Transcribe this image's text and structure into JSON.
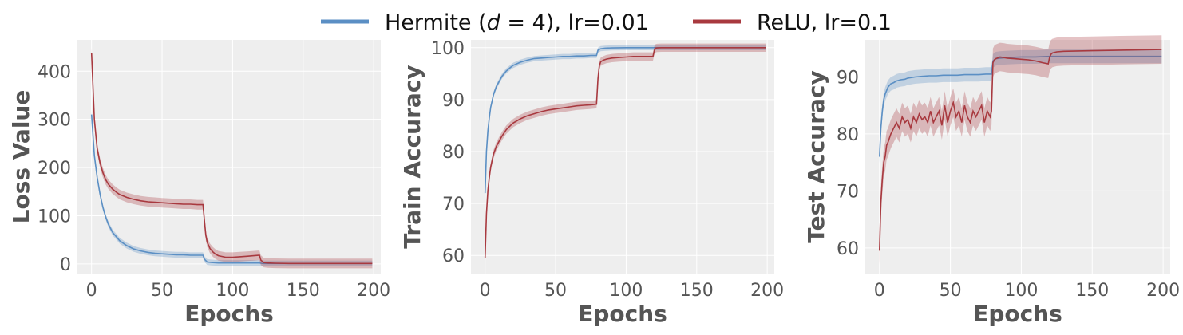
{
  "legend": {
    "entries": [
      {
        "label_pre": "Hermite (",
        "label_var": "d",
        "label_post": " = 4), lr=0.01",
        "color": "#5b8fc4"
      },
      {
        "label": "ReLU, lr=0.1",
        "color": "#a8393f"
      }
    ]
  },
  "chart_data": [
    {
      "type": "line",
      "ylabel": "Loss Value",
      "xlabel": "Epochs",
      "xlim": [
        -10,
        205
      ],
      "ylim": [
        -20,
        465
      ],
      "xticks": [
        0,
        50,
        100,
        150,
        200
      ],
      "yticks": [
        0,
        100,
        200,
        300,
        400
      ],
      "grid": true,
      "series": [
        {
          "name": "Hermite (d = 4), lr=0.01",
          "color": "#5b8fc4",
          "x": [
            0,
            2,
            4,
            6,
            8,
            10,
            12,
            15,
            18,
            20,
            25,
            30,
            35,
            40,
            45,
            50,
            55,
            60,
            65,
            70,
            75,
            79,
            80,
            82,
            85,
            90,
            95,
            100,
            105,
            110,
            115,
            119,
            120,
            122,
            125,
            130,
            140,
            150,
            160,
            170,
            180,
            190,
            199
          ],
          "y": [
            310,
            225,
            180,
            145,
            118,
            98,
            82,
            65,
            55,
            48,
            38,
            31,
            27,
            24,
            22,
            21,
            20,
            19,
            19,
            18,
            18,
            18,
            10,
            4,
            3,
            2,
            2,
            2,
            2,
            2,
            2,
            2,
            1.5,
            1,
            1,
            1,
            1,
            1,
            1,
            1,
            1,
            1,
            1
          ],
          "band": 6
        },
        {
          "name": "ReLU, lr=0.1",
          "color": "#a8393f",
          "x": [
            0,
            2,
            4,
            6,
            8,
            10,
            12,
            15,
            18,
            20,
            25,
            30,
            35,
            40,
            45,
            50,
            55,
            60,
            65,
            70,
            75,
            79,
            80,
            81,
            82,
            84,
            86,
            88,
            90,
            95,
            100,
            105,
            110,
            115,
            119,
            120,
            122,
            125,
            130,
            140,
            150,
            160,
            170,
            180,
            190,
            199
          ],
          "y": [
            438,
            300,
            240,
            210,
            190,
            175,
            165,
            155,
            148,
            144,
            138,
            134,
            131,
            129,
            128,
            127,
            126,
            125,
            124,
            124,
            123,
            123,
            90,
            60,
            45,
            32,
            25,
            20,
            17,
            14,
            14,
            15,
            16,
            17,
            18,
            8,
            3,
            2,
            1.5,
            1,
            1,
            1,
            1,
            1,
            1,
            1
          ],
          "band": 10
        }
      ]
    },
    {
      "type": "line",
      "ylabel": "Train Accuracy",
      "xlabel": "Epochs",
      "xlim": [
        -10,
        205
      ],
      "ylim": [
        56.5,
        101.5
      ],
      "xticks": [
        0,
        50,
        100,
        150,
        200
      ],
      "yticks": [
        60,
        70,
        80,
        90,
        100
      ],
      "grid": true,
      "series": [
        {
          "name": "Hermite (d = 4), lr=0.01",
          "color": "#5b8fc4",
          "x": [
            0,
            1,
            2,
            3,
            4,
            6,
            8,
            10,
            12,
            15,
            18,
            20,
            25,
            30,
            35,
            40,
            45,
            50,
            55,
            60,
            65,
            70,
            75,
            79,
            80,
            82,
            85,
            90,
            100,
            110,
            120,
            130,
            150,
            170,
            199
          ],
          "y": [
            72,
            80,
            84,
            86.5,
            88.5,
            91,
            92.5,
            93.5,
            94.5,
            95.5,
            96.2,
            96.6,
            97.2,
            97.6,
            97.9,
            98,
            98.1,
            98.2,
            98.3,
            98.3,
            98.4,
            98.4,
            98.5,
            98.5,
            99.5,
            99.8,
            99.9,
            99.95,
            100,
            100,
            100,
            100,
            100,
            100,
            100
          ],
          "band": 0.5
        },
        {
          "name": "ReLU, lr=0.1",
          "color": "#a8393f",
          "x": [
            0,
            1,
            2,
            3,
            4,
            6,
            8,
            10,
            12,
            15,
            18,
            20,
            25,
            30,
            35,
            40,
            45,
            50,
            55,
            60,
            65,
            70,
            75,
            79,
            80,
            81,
            82,
            84,
            86,
            90,
            95,
            100,
            105,
            110,
            115,
            119,
            120,
            121,
            122,
            125,
            130,
            150,
            170,
            199
          ],
          "y": [
            59.5,
            68,
            72.5,
            75,
            77,
            79.5,
            81,
            82,
            83,
            84.2,
            85,
            85.5,
            86.3,
            86.9,
            87.3,
            87.7,
            88,
            88.2,
            88.4,
            88.6,
            88.8,
            88.9,
            89,
            89.1,
            94,
            96.5,
            97.3,
            97.6,
            97.8,
            98,
            98.1,
            98.2,
            98.3,
            98.3,
            98.3,
            98.3,
            99.5,
            99.9,
            99.95,
            100,
            100,
            100,
            100,
            100
          ],
          "band": 0.8
        }
      ]
    },
    {
      "type": "line",
      "ylabel": "Test Accuracy",
      "xlabel": "Epochs",
      "xlim": [
        -10,
        205
      ],
      "ylim": [
        55.5,
        96.5
      ],
      "xticks": [
        0,
        50,
        100,
        150,
        200
      ],
      "yticks": [
        60,
        70,
        80,
        90
      ],
      "grid": true,
      "series": [
        {
          "name": "Hermite (d = 4), lr=0.01",
          "color": "#5b8fc4",
          "x": [
            0,
            1,
            2,
            3,
            4,
            6,
            8,
            10,
            12,
            15,
            18,
            20,
            25,
            30,
            35,
            40,
            45,
            50,
            55,
            60,
            65,
            70,
            75,
            79,
            80,
            82,
            85,
            90,
            100,
            110,
            120,
            130,
            150,
            170,
            199
          ],
          "y": [
            76,
            81,
            84,
            86,
            87,
            88.2,
            88.8,
            89,
            89.3,
            89.5,
            89.6,
            89.8,
            90,
            90.1,
            90.2,
            90.2,
            90.3,
            90.3,
            90.3,
            90.4,
            90.4,
            90.4,
            90.5,
            90.5,
            92.8,
            93.2,
            93.3,
            93.4,
            93.5,
            93.5,
            93.6,
            93.6,
            93.6,
            93.6,
            93.6
          ],
          "band": 1.2
        },
        {
          "name": "ReLU, lr=0.1",
          "color": "#a8393f",
          "x": [
            0,
            1,
            2,
            3,
            4,
            5,
            6,
            8,
            10,
            12,
            14,
            16,
            18,
            20,
            22,
            24,
            26,
            28,
            30,
            32,
            34,
            36,
            38,
            40,
            42,
            44,
            46,
            48,
            50,
            52,
            54,
            56,
            58,
            60,
            62,
            64,
            66,
            68,
            70,
            72,
            74,
            76,
            78,
            79,
            80,
            81,
            82,
            85,
            88,
            90,
            95,
            100,
            105,
            110,
            115,
            119,
            120,
            121,
            122,
            125,
            130,
            150,
            170,
            199
          ],
          "y": [
            59.5,
            68,
            72,
            75,
            76,
            78,
            78.5,
            80,
            81,
            82,
            81,
            83,
            82,
            82.5,
            81,
            83,
            82,
            83.5,
            82.5,
            83,
            82,
            84,
            82,
            83,
            84,
            81.5,
            85,
            82,
            84,
            85.5,
            83,
            84,
            82,
            85,
            83,
            82,
            84,
            83,
            84,
            85,
            82,
            84,
            83,
            84,
            92.5,
            93,
            93.2,
            93.5,
            93.4,
            93.3,
            93.2,
            93.1,
            93,
            92.8,
            92.5,
            92.3,
            93.5,
            94,
            94.2,
            94.4,
            94.5,
            94.6,
            94.7,
            94.8
          ],
          "band": 2.5
        }
      ]
    }
  ]
}
